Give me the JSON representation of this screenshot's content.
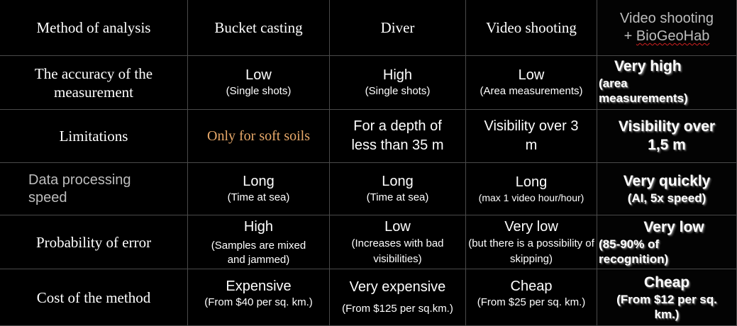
{
  "header": {
    "method": "Method of analysis",
    "bucket": "Bucket casting",
    "diver": "Diver",
    "video": "Video shooting",
    "biogeo_line1": "Video shooting",
    "biogeo_plus": "+ ",
    "biogeo_line2": "BioGeoHab"
  },
  "rows": {
    "accuracy": {
      "label": "The accuracy of the measurement",
      "bucket_main": "Low",
      "bucket_sub": "(Single shots)",
      "diver_main": "High",
      "diver_sub": "(Single shots)",
      "video_main": "Low",
      "video_sub": "(Area measurements)",
      "bio_main": "Very high",
      "bio_sub": "(area measurements)"
    },
    "limitations": {
      "label": "Limitations",
      "bucket": "Only for soft soils",
      "diver": "For a depth of less than 35 m",
      "video": "Visibility over 3 m",
      "bio": "Visibility over 1,5 m"
    },
    "speed": {
      "label": "Data processing speed",
      "bucket_main": "Long",
      "bucket_sub": "(Time at sea)",
      "diver_main": "Long",
      "diver_sub": "(Time at sea)",
      "video_main": "Long",
      "video_sub": "(max 1 video hour/hour)",
      "bio_main": "Very quickly",
      "bio_sub": "(AI, 5x speed)"
    },
    "error": {
      "label": "Probability of error",
      "bucket_main": "High",
      "bucket_sub": "(Samples are mixed and jammed)",
      "diver_main": "Low",
      "diver_sub": "(Increases with bad visibilities)",
      "video_main": "Very low",
      "video_sub": "(but there is a possibility of skipping)",
      "bio_main": "Very low",
      "bio_sub": "(85-90% of recognition)"
    },
    "cost": {
      "label": "Cost of the method",
      "bucket_main": "Expensive",
      "bucket_sub": "(From $40 per sq. km.)",
      "diver_main": "Very expensive",
      "diver_sub": "(From $125 per sq.km.)",
      "video_main": "Cheap",
      "video_sub": "(From $25 per sq. km.)",
      "bio_main": "Cheap",
      "bio_sub": "(From $12 per sq. km.)"
    }
  },
  "colors": {
    "background": "#000000",
    "grid": "#4a4a4a",
    "text": "#ffffff",
    "muted": "#bdbdbd",
    "highlight": "#e8a96a",
    "spellcheck": "#d02020"
  }
}
